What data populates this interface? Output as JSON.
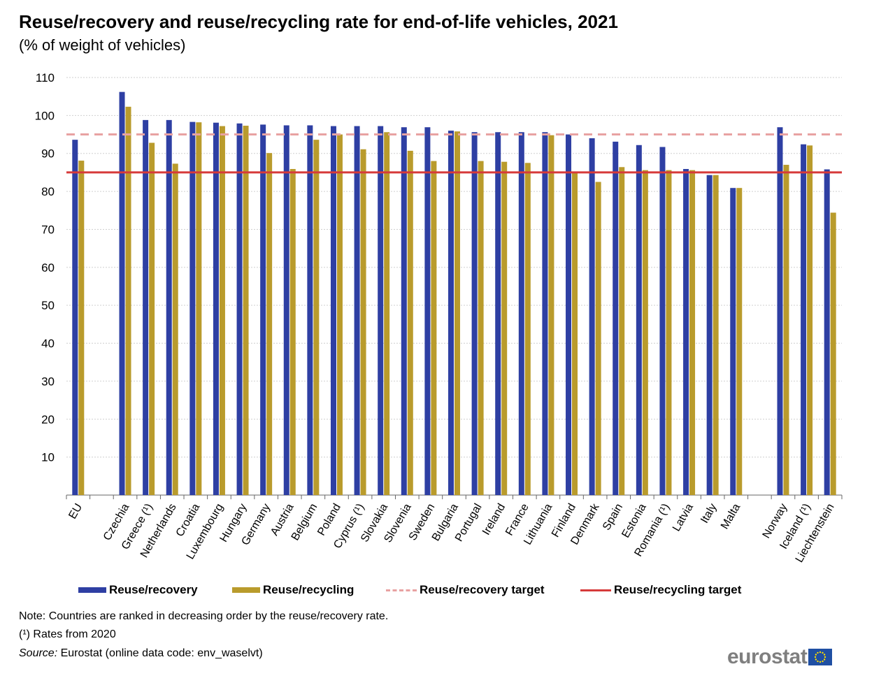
{
  "chart_data": {
    "type": "bar",
    "title": "Reuse/recovery and reuse/recycling rate for end-of-life vehicles, 2021",
    "subtitle": "(% of weight of vehicles)",
    "categories": [
      "EU",
      "Czechia",
      "Greece (¹)",
      "Netherlands",
      "Croatia",
      "Luxembourg",
      "Hungary",
      "Germany",
      "Austria",
      "Belgium",
      "Poland",
      "Cyprus (¹)",
      "Slovakia",
      "Slovenia",
      "Sweden",
      "Bulgaria",
      "Portugal",
      "Ireland",
      "France",
      "Lithuania",
      "Finland",
      "Denmark",
      "Spain",
      "Estonia",
      "Romania (¹)",
      "Latvia",
      "Italy",
      "Malta",
      "Norway",
      "Iceland (¹)",
      "Liechtenstein"
    ],
    "series": [
      {
        "name": "Reuse/recovery",
        "color": "#2e3fa3",
        "values": [
          93.6,
          106.2,
          98.8,
          98.8,
          98.3,
          98.1,
          97.9,
          97.6,
          97.4,
          97.4,
          97.2,
          97.2,
          97.2,
          96.9,
          96.9,
          96.0,
          95.6,
          95.6,
          95.6,
          95.6,
          95.0,
          94.0,
          93.1,
          92.2,
          91.7,
          85.9,
          84.3,
          80.9,
          96.9,
          92.4,
          85.8
        ]
      },
      {
        "name": "Reuse/recycling",
        "color": "#b99b2c",
        "values": [
          88.1,
          102.3,
          92.8,
          87.3,
          98.2,
          97.2,
          97.3,
          90.1,
          85.9,
          93.6,
          95.0,
          91.1,
          95.6,
          90.7,
          88.0,
          95.8,
          88.0,
          87.8,
          87.5,
          94.8,
          85.0,
          82.5,
          86.4,
          85.6,
          85.6,
          85.6,
          84.3,
          80.9,
          87.0,
          92.1,
          74.4
        ]
      }
    ],
    "targets": [
      {
        "name": "Reuse/recovery target",
        "value": 95,
        "style": "dashed",
        "color": "#e8a2a2"
      },
      {
        "name": "Reuse/recycling target",
        "value": 85,
        "style": "solid",
        "color": "#d63a3a"
      }
    ],
    "ylim": [
      0,
      110
    ],
    "yticks": [
      "10",
      "20",
      "30",
      "40",
      "50",
      "60",
      "70",
      "80",
      "90",
      "100",
      "110"
    ],
    "grid": true,
    "legend_position": "bottom"
  },
  "notes": {
    "ranking": "Note: Countries are ranked in decreasing order by the reuse/recovery rate.",
    "footnote": "(¹) Rates from 2020",
    "source_label": "Source:",
    "source_text": " Eurostat (online data code: env_waselvt)"
  },
  "logo": {
    "text": "eurostat",
    "icon": "eu-flag-icon"
  }
}
